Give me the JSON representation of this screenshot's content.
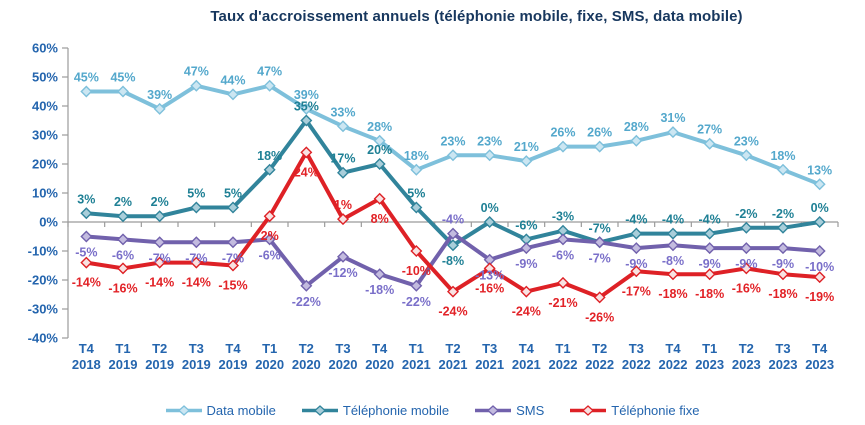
{
  "title": "Taux d'accroissement annuels (téléphonie mobile, fixe, SMS, data mobile)",
  "colors": {
    "title": "#17375E",
    "axis_text": "#2465AE",
    "axis_line": "#9B9B9B",
    "background": "#FFFFFF"
  },
  "chart_data": {
    "type": "line",
    "title": "Taux d'accroissement annuels (téléphonie mobile, fixe, SMS, data mobile)",
    "categories": [
      "T4 2018",
      "T1 2019",
      "T2 2019",
      "T3 2019",
      "T4 2019",
      "T1 2020",
      "T2 2020",
      "T3 2020",
      "T4 2020",
      "T1 2021",
      "T2 2021",
      "T3 2021",
      "T4 2021",
      "T1 2022",
      "T2 2022",
      "T3 2022",
      "T4 2022",
      "T1 2023",
      "T2 2023",
      "T3 2023",
      "T4 2023"
    ],
    "series": [
      {
        "name": "Data mobile",
        "color": "#7EC0DB",
        "marker_fill": "#CBE6F2",
        "label_color": "#54A8CC",
        "label_side": "above",
        "label_exceptions": {},
        "values": [
          45,
          45,
          39,
          47,
          44,
          47,
          39,
          33,
          28,
          18,
          23,
          23,
          21,
          26,
          26,
          28,
          31,
          27,
          23,
          18,
          13
        ]
      },
      {
        "name": "Téléphonie mobile",
        "color": "#31849B",
        "marker_fill": "#A9CEDA",
        "label_color": "#1F8095",
        "label_side": "above",
        "label_exceptions": {
          "10": "below"
        },
        "values": [
          3,
          2,
          2,
          5,
          5,
          18,
          35,
          17,
          20,
          5,
          -8,
          0,
          -6,
          -3,
          -7,
          -4,
          -4,
          -4,
          -2,
          -2,
          0
        ]
      },
      {
        "name": "SMS",
        "color": "#7161AC",
        "marker_fill": "#C3BBDF",
        "label_color": "#7A6FC9",
        "label_side": "below",
        "label_exceptions": {
          "10": "above"
        },
        "values": [
          -5,
          -6,
          -7,
          -7,
          -7,
          -6,
          -22,
          -12,
          -18,
          -22,
          -4,
          -13,
          -9,
          -6,
          -7,
          -9,
          -8,
          -9,
          -9,
          -9,
          -10
        ]
      },
      {
        "name": "Téléphonie fixe",
        "color": "#DE2126",
        "marker_fill": "#F8E2E2",
        "label_color": "#E22227",
        "label_side": "below",
        "label_exceptions": {
          "7": "above"
        },
        "values": [
          -14,
          -16,
          -14,
          -14,
          -15,
          2,
          24,
          1,
          8,
          -10,
          -24,
          -16,
          -24,
          -21,
          -26,
          -17,
          -18,
          -18,
          -16,
          -18,
          -19
        ]
      }
    ],
    "ylim": [
      -40,
      60
    ],
    "ytick_step": 10,
    "ytick_format": "percent",
    "grid": "none",
    "legend_position": "bottom"
  }
}
